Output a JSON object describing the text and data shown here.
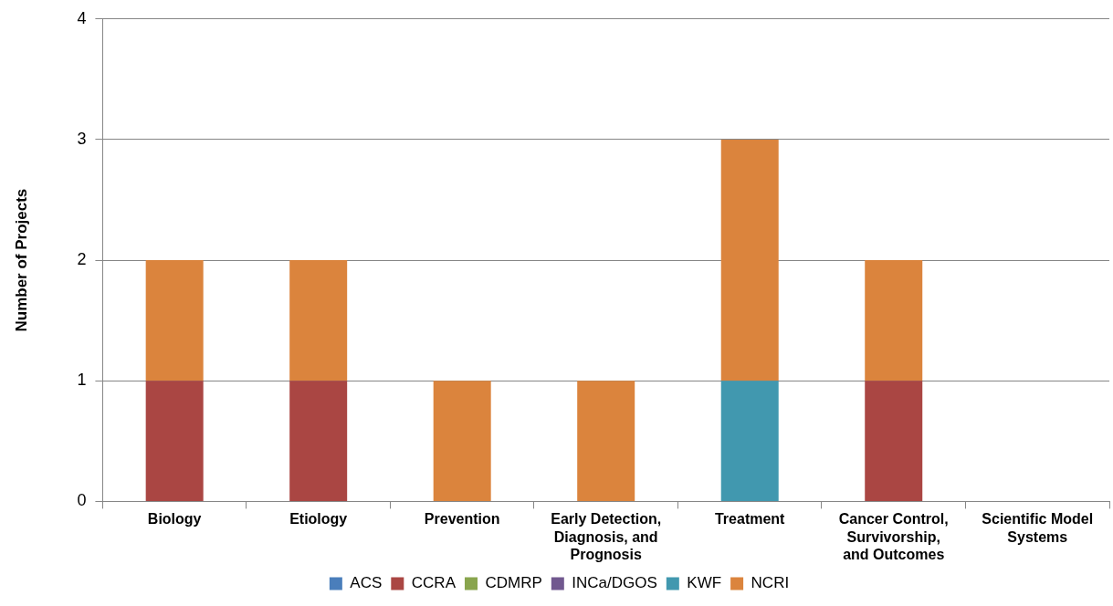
{
  "chart_data": {
    "type": "bar",
    "stacked": true,
    "ylabel": "Number of Projects",
    "categories": [
      "Biology",
      "Etiology",
      "Prevention",
      "Early Detection, Diagnosis, and Prognosis",
      "Treatment",
      "Cancer Control, Survivorship, and Outcomes",
      "Scientific Model Systems"
    ],
    "series": [
      {
        "name": "ACS",
        "color": "#4a7ebb",
        "values": [
          0,
          0,
          0,
          0,
          0,
          0,
          0
        ]
      },
      {
        "name": "CCRA",
        "color": "#aa4643",
        "values": [
          1,
          1,
          0,
          0,
          0,
          1,
          0
        ]
      },
      {
        "name": "CDMRP",
        "color": "#89a54e",
        "values": [
          0,
          0,
          0,
          0,
          0,
          0,
          0
        ]
      },
      {
        "name": "INCa/DGOS",
        "color": "#71588f",
        "values": [
          0,
          0,
          0,
          0,
          0,
          0,
          0
        ]
      },
      {
        "name": "KWF",
        "color": "#4198af",
        "values": [
          0,
          0,
          0,
          0,
          1,
          0,
          0
        ]
      },
      {
        "name": "NCRI",
        "color": "#db843d",
        "values": [
          1,
          1,
          1,
          1,
          2,
          1,
          0
        ]
      }
    ],
    "ylim": [
      0,
      4
    ],
    "yticks": [
      0,
      1,
      2,
      3,
      4
    ],
    "grid": "y",
    "legend": "bottom"
  }
}
